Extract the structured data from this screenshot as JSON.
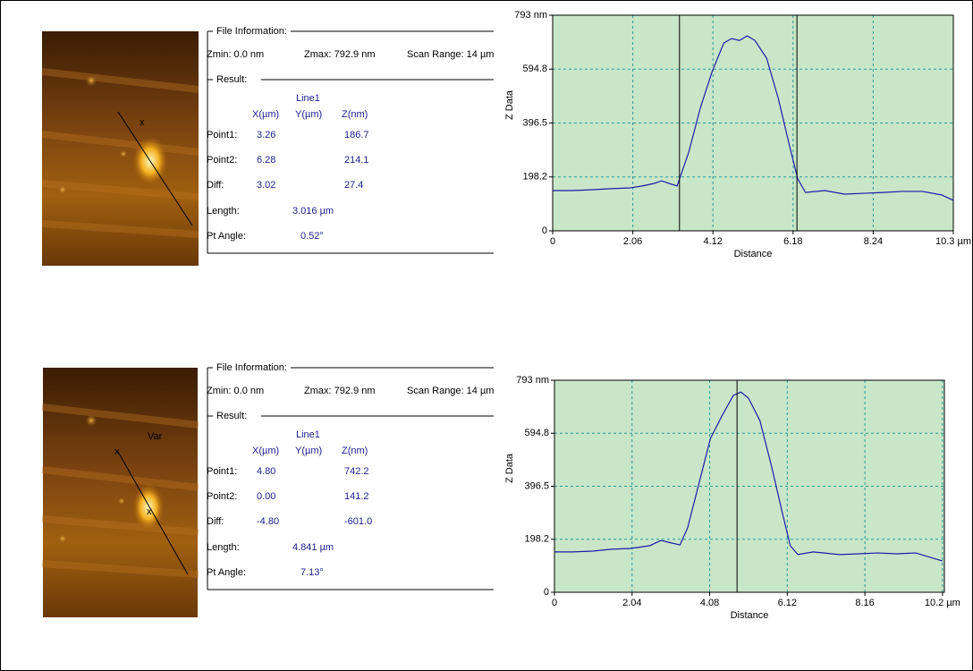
{
  "panels": [
    {
      "file_info_label": "File Information:",
      "zmin": "Zmin: 0.0 nm",
      "zmax": "Zmax: 792.9 nm",
      "scan_range": "Scan Range: 14 µm",
      "result_label": "Result:",
      "line_name": "Line1",
      "headers": [
        "X(µm)",
        "Y(µm)",
        "Z(nm)"
      ],
      "rows": [
        {
          "label": "Point1:",
          "x": "3.26",
          "z": "186.7"
        },
        {
          "label": "Point2:",
          "x": "6.28",
          "z": "214.1"
        },
        {
          "label": "Diff:",
          "x": "3.02",
          "z": "27.4"
        }
      ],
      "length_label": "Length:",
      "length": "3.016 µm",
      "angle_label": "Pt Angle:",
      "angle": "0.52°"
    },
    {
      "file_info_label": "File Information:",
      "zmin": "Zmin: 0.0 nm",
      "zmax": "Zmax: 792.9 nm",
      "scan_range": "Scan Range: 14 µm",
      "result_label": "Result:",
      "line_name": "Line1",
      "headers": [
        "X(µm)",
        "Y(µm)",
        "Z(nm)"
      ],
      "rows": [
        {
          "label": "Point1:",
          "x": "4.80",
          "z": "742.2"
        },
        {
          "label": "Point2:",
          "x": "0.00",
          "z": "141.2"
        },
        {
          "label": "Diff:",
          "x": "-4.80",
          "z": "-601.0"
        }
      ],
      "length_label": "Length:",
      "length": "4.841 µm",
      "angle_label": "Pt Angle:",
      "angle": "7.13°",
      "image_label": "Var"
    }
  ],
  "chart_data": [
    {
      "type": "line",
      "xlabel": "Distance",
      "ylabel": "Z Data",
      "background": "#c8e6c8",
      "grid": true,
      "xlim": [
        0,
        10.3
      ],
      "ylim": [
        0,
        793
      ],
      "xticks": [
        0,
        2.06,
        4.12,
        6.18,
        8.24,
        {
          "value": 10.3,
          "label": "10.3 µm"
        }
      ],
      "yticks": [
        0,
        198.2,
        396.5,
        594.8,
        {
          "value": 793,
          "label": "793 nm"
        }
      ],
      "cursors": [
        3.26,
        6.28
      ],
      "x": [
        0,
        0.5,
        1.0,
        1.5,
        2.0,
        2.3,
        2.6,
        2.8,
        3.0,
        3.2,
        3.5,
        3.8,
        4.1,
        4.4,
        4.6,
        4.8,
        5.0,
        5.2,
        5.5,
        5.8,
        6.1,
        6.3,
        6.5,
        7.0,
        7.5,
        8.0,
        8.5,
        9.0,
        9.5,
        10.0,
        10.3
      ],
      "series": [
        {
          "color": "#1c1ca8",
          "values": [
            148,
            148,
            151,
            155,
            158,
            165,
            174,
            184,
            174,
            165,
            290,
            454,
            586,
            691,
            707,
            700,
            717,
            700,
            635,
            487,
            306,
            191,
            141,
            148,
            135,
            138,
            141,
            145,
            145,
            132,
            112
          ]
        }
      ]
    },
    {
      "type": "line",
      "xlabel": "Distance",
      "ylabel": "Z Data",
      "background": "#c8e6c8",
      "grid": true,
      "xlim": [
        0,
        10.25
      ],
      "ylim": [
        0,
        793
      ],
      "xticks": [
        0,
        2.04,
        4.08,
        6.12,
        8.16,
        {
          "value": 10.2,
          "label": "10.2 µm"
        }
      ],
      "yticks": [
        0,
        198.2,
        396.5,
        594.8,
        {
          "value": 793,
          "label": "793 nm"
        }
      ],
      "cursors": [
        4.8
      ],
      "x": [
        0,
        0.5,
        1.0,
        1.5,
        2.0,
        2.5,
        2.8,
        3.0,
        3.3,
        3.5,
        3.8,
        4.1,
        4.4,
        4.7,
        4.9,
        5.1,
        5.4,
        5.7,
        6.0,
        6.2,
        6.4,
        6.8,
        7.5,
        8.0,
        8.5,
        9.0,
        9.5,
        10.2
      ],
      "series": [
        {
          "color": "#1c1ca8",
          "values": [
            151,
            151,
            154,
            161,
            164,
            174,
            194,
            187,
            177,
            241,
            408,
            575,
            659,
            736,
            749,
            726,
            642,
            475,
            291,
            174,
            141,
            151,
            141,
            144,
            147,
            144,
            147,
            117
          ]
        }
      ]
    }
  ]
}
